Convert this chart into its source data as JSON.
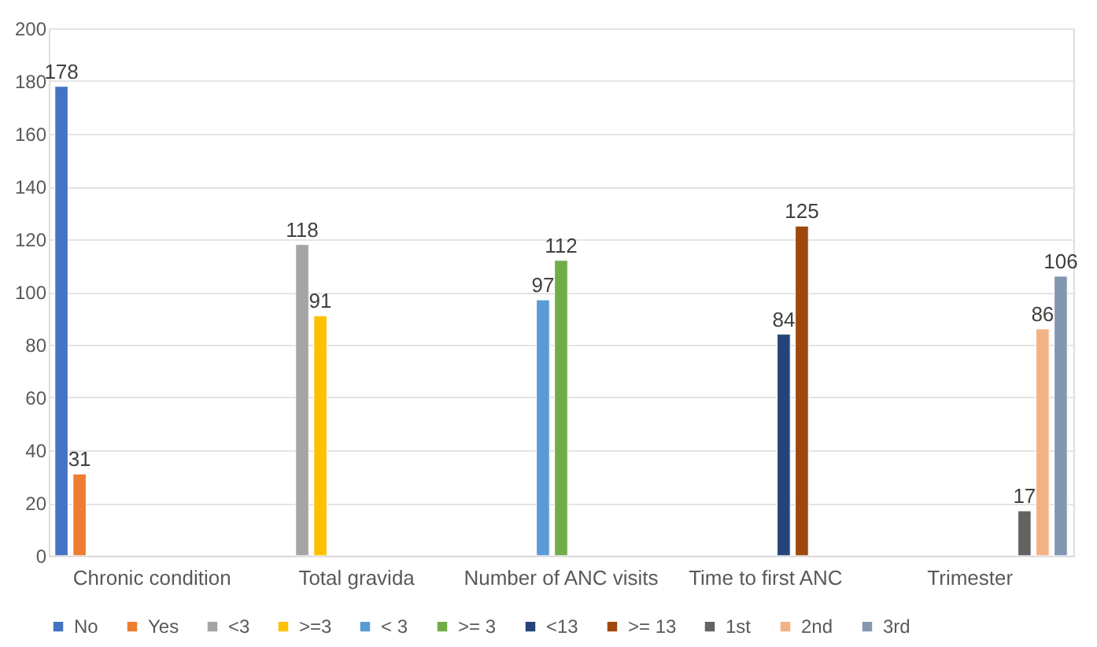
{
  "chart_data": {
    "type": "bar",
    "categories": [
      "Chronic condition",
      "Total gravida",
      "Number of ANC visits",
      "Time to first ANC",
      "Trimester"
    ],
    "series": [
      {
        "name": "No",
        "color": "#4472c4",
        "values": [
          178,
          null,
          null,
          null,
          null
        ]
      },
      {
        "name": "Yes",
        "color": "#ed7d31",
        "values": [
          31,
          null,
          null,
          null,
          null
        ]
      },
      {
        "name": "<3",
        "color": "#a5a5a5",
        "values": [
          null,
          118,
          null,
          null,
          null
        ]
      },
      {
        "name": ">=3",
        "color": "#ffc000",
        "values": [
          null,
          91,
          null,
          null,
          null
        ]
      },
      {
        "name": "< 3",
        "color": "#5b9bd5",
        "values": [
          null,
          null,
          97,
          null,
          null
        ]
      },
      {
        "name": ">= 3",
        "color": "#70ad47",
        "values": [
          null,
          null,
          112,
          null,
          null
        ]
      },
      {
        "name": "<13",
        "color": "#264478",
        "values": [
          null,
          null,
          null,
          84,
          null
        ]
      },
      {
        "name": ">= 13",
        "color": "#9e480e",
        "values": [
          null,
          null,
          null,
          125,
          null
        ]
      },
      {
        "name": "1st",
        "color": "#636363",
        "values": [
          null,
          null,
          null,
          null,
          17
        ]
      },
      {
        "name": "2nd",
        "color": "#f4b183",
        "values": [
          null,
          null,
          null,
          null,
          86
        ]
      },
      {
        "name": "3rd",
        "color": "#8497b0",
        "values": [
          null,
          null,
          null,
          null,
          106
        ]
      }
    ],
    "ylim": [
      0,
      200
    ],
    "yticks": [
      0,
      20,
      40,
      60,
      80,
      100,
      120,
      140,
      160,
      180,
      200
    ],
    "grid": "y",
    "legend": "bottom",
    "data_labels": true
  }
}
